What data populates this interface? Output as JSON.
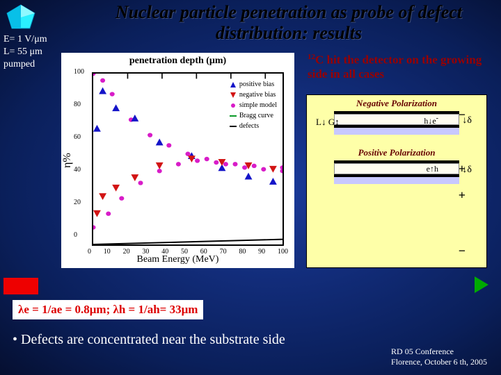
{
  "title": "Nuclear particle penetration as probe of defect distribution: results",
  "params": {
    "e": "E= 1 V/μm",
    "l": "L= 55 μm",
    "p": "pumped"
  },
  "chart": {
    "title": "penetration depth (μm)",
    "ylabel": "η%",
    "xlabel": "Beam Energy (MeV)",
    "xlim": [
      0,
      100
    ],
    "xtick_step": 10,
    "ylim": [
      0,
      100
    ],
    "ytick_step": 20,
    "legend": {
      "pos": "positive bias",
      "neg": "negative bias",
      "model": "simple model",
      "bragg": "Bragg curve",
      "def": "defects"
    },
    "colors": {
      "pos": "#1414c8",
      "neg": "#d21414",
      "model": "#d81cc8",
      "bragg": "#0a9a28",
      "def": "#000000"
    },
    "xtop_ticks": [
      10,
      20,
      30,
      40,
      50
    ],
    "series_pos": [
      [
        2,
        68
      ],
      [
        5,
        90
      ],
      [
        12,
        80
      ],
      [
        22,
        74
      ],
      [
        35,
        60
      ],
      [
        52,
        52
      ],
      [
        68,
        45
      ],
      [
        82,
        40
      ],
      [
        95,
        37
      ]
    ],
    "series_neg": [
      [
        2,
        18
      ],
      [
        5,
        28
      ],
      [
        12,
        33
      ],
      [
        22,
        39
      ],
      [
        35,
        46
      ],
      [
        52,
        50
      ],
      [
        68,
        48
      ],
      [
        82,
        46
      ],
      [
        95,
        44
      ]
    ],
    "model_pos": [
      [
        0,
        100
      ],
      [
        5,
        96
      ],
      [
        10,
        88
      ],
      [
        20,
        73
      ],
      [
        30,
        64
      ],
      [
        40,
        58
      ],
      [
        50,
        53
      ],
      [
        60,
        50
      ],
      [
        70,
        47
      ],
      [
        80,
        45
      ],
      [
        90,
        44
      ],
      [
        100,
        43
      ]
    ],
    "model_neg": [
      [
        0,
        10
      ],
      [
        8,
        18
      ],
      [
        15,
        27
      ],
      [
        25,
        36
      ],
      [
        35,
        43
      ],
      [
        45,
        47
      ],
      [
        55,
        49
      ],
      [
        65,
        48
      ],
      [
        75,
        47
      ],
      [
        85,
        46
      ],
      [
        100,
        45
      ]
    ],
    "defects_line": [
      [
        0,
        0
      ],
      [
        100,
        3
      ]
    ]
  },
  "hit_note": {
    "prefix": "12",
    "text": "C hit  the detector on the growing side in all cases"
  },
  "diag": {
    "neg_label": "Negative Polarization",
    "pos_label": "Positive Polarization",
    "L": "L",
    "G": "G",
    "delta": "δ",
    "he": "h",
    "e": "e",
    "minus": "−",
    "plus": "+"
  },
  "lambda": "λe = 1/ae = 0.8μm;  λh = 1/ah= 33μm",
  "bullet": "•  Defects are concentrated near the substrate side",
  "footer": {
    "l1": "RD 05 Conference",
    "l2": "Florence, October 6 th, 2005"
  }
}
